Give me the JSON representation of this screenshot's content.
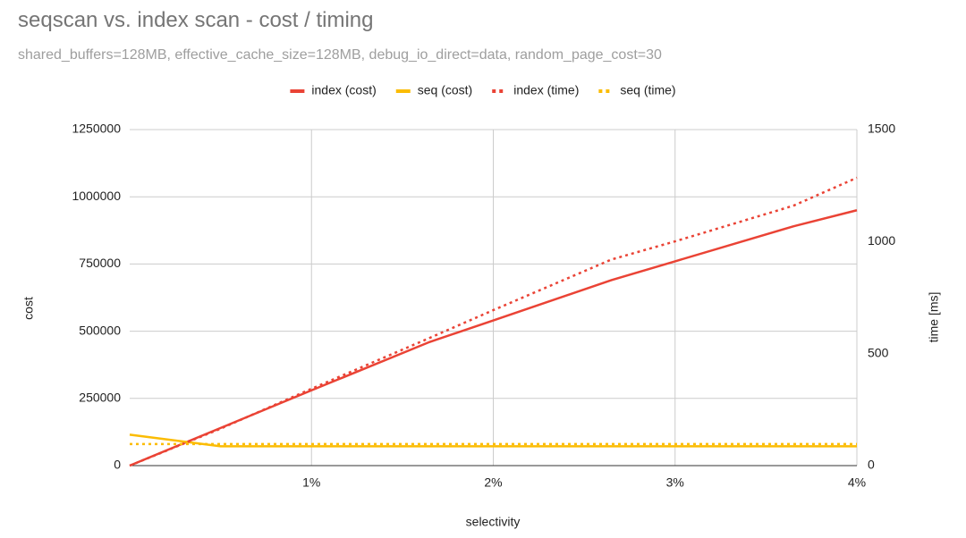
{
  "chart_data": {
    "type": "line",
    "title": "seqscan vs. index scan - cost / timing",
    "subtitle": "shared_buffers=128MB, effective_cache_size=128MB, debug_io_direct=data, random_page_cost=30",
    "xlabel": "selectivity",
    "ylabel": "cost",
    "y2label": "time [ms]",
    "x": [
      0,
      0.5,
      1,
      1.65,
      2,
      2.65,
      3,
      3.65,
      4
    ],
    "series": [
      {
        "name": "index (cost)",
        "color": "#ea4335",
        "style": "solid",
        "values": [
          0,
          140000,
          280000,
          460000,
          540000,
          690000,
          760000,
          890000,
          950000
        ]
      },
      {
        "name": "seq (cost)",
        "color": "#fbbc04",
        "style": "solid",
        "values": [
          115000,
          72000,
          72000,
          72000,
          72000,
          72000,
          72000,
          72000,
          72000
        ]
      },
      {
        "name": "index (time)",
        "color": "#ea4335",
        "style": "dotted",
        "axis": "y2",
        "values": [
          0,
          165,
          343,
          570,
          694,
          920,
          1001,
          1160,
          1285
        ]
      },
      {
        "name": "seq (time)",
        "color": "#fbbc04",
        "style": "dotted",
        "axis": "y2",
        "values": [
          96,
          96,
          96,
          96,
          96,
          96,
          96,
          96,
          96
        ]
      }
    ],
    "xlim": [
      0,
      4
    ],
    "xticks": [
      {
        "value": 1,
        "label": "1%"
      },
      {
        "value": 2,
        "label": "2%"
      },
      {
        "value": 3,
        "label": "3%"
      },
      {
        "value": 4,
        "label": "4%"
      }
    ],
    "ylim": [
      0,
      1250000
    ],
    "yticks": [
      0,
      250000,
      500000,
      750000,
      1000000,
      1250000
    ],
    "y2lim": [
      0,
      1500
    ],
    "y2ticks": [
      0,
      500,
      1000,
      1500
    ],
    "grid": true,
    "legend": "top"
  }
}
